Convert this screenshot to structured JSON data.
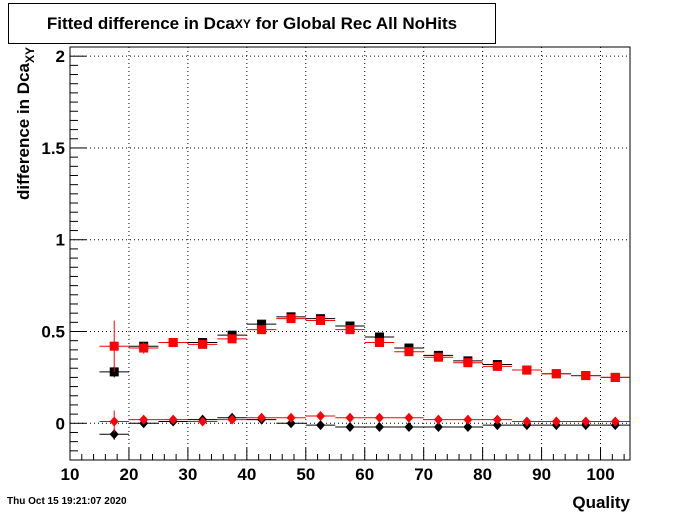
{
  "chart_data": {
    "type": "scatter",
    "title_main": "Fitted difference in Dca",
    "title_sub": "XY",
    "title_rest": " for Global Rec All NoHits",
    "ylabel_main": "difference in Dca",
    "ylabel_sub": "XY",
    "xlabel": "Quality",
    "xlim": [
      10,
      105
    ],
    "ylim": [
      -0.2,
      2.05
    ],
    "xticks": [
      10,
      20,
      30,
      40,
      50,
      60,
      70,
      80,
      90,
      100
    ],
    "yticks": [
      0,
      0.5,
      1,
      1.5,
      2
    ],
    "ytick_labels": [
      "0",
      "0.5",
      "1",
      "1.5",
      "2"
    ],
    "grid": true,
    "series": [
      {
        "marker": "square",
        "color": "#000000",
        "x": [
          17.5,
          22.5,
          27.5,
          32.5,
          37.5,
          42.5,
          47.5,
          52.5,
          57.5,
          62.5,
          67.5,
          72.5,
          77.5,
          82.5,
          87.5,
          92.5,
          97.5,
          102.5
        ],
        "y": [
          0.28,
          0.42,
          0.44,
          0.44,
          0.48,
          0.54,
          0.58,
          0.57,
          0.53,
          0.47,
          0.41,
          0.37,
          0.34,
          0.32,
          0.29,
          0.27,
          0.26,
          0.25
        ],
        "yerr": [
          0.03,
          0.01,
          0.01,
          0.01,
          0.01,
          0.01,
          0.01,
          0.01,
          0.01,
          0.01,
          0.01,
          0.01,
          0.01,
          0.01,
          0.01,
          0.01,
          0.01,
          0.01
        ]
      },
      {
        "marker": "square",
        "color": "#ff0000",
        "x": [
          17.5,
          22.5,
          27.5,
          32.5,
          37.5,
          42.5,
          47.5,
          52.5,
          57.5,
          62.5,
          67.5,
          72.5,
          77.5,
          82.5,
          87.5,
          92.5,
          97.5,
          102.5
        ],
        "y": [
          0.42,
          0.41,
          0.44,
          0.43,
          0.46,
          0.51,
          0.57,
          0.56,
          0.51,
          0.44,
          0.39,
          0.36,
          0.33,
          0.31,
          0.29,
          0.27,
          0.26,
          0.25
        ],
        "yerr": [
          0.14,
          0.03,
          0.02,
          0.02,
          0.02,
          0.01,
          0.01,
          0.01,
          0.01,
          0.01,
          0.01,
          0.01,
          0.01,
          0.01,
          0.01,
          0.01,
          0.01,
          0.01
        ]
      },
      {
        "marker": "diamond",
        "color": "#000000",
        "x": [
          17.5,
          22.5,
          27.5,
          32.5,
          37.5,
          42.5,
          47.5,
          52.5,
          57.5,
          62.5,
          67.5,
          72.5,
          77.5,
          82.5,
          87.5,
          92.5,
          97.5,
          102.5
        ],
        "y": [
          -0.06,
          0.0,
          0.01,
          0.02,
          0.03,
          0.02,
          0.0,
          -0.01,
          -0.02,
          -0.02,
          -0.02,
          -0.02,
          -0.02,
          -0.01,
          -0.01,
          -0.01,
          -0.01,
          -0.01
        ],
        "yerr": [
          0.03,
          0.01,
          0.01,
          0.01,
          0.01,
          0.01,
          0.01,
          0.01,
          0.01,
          0.01,
          0.01,
          0.01,
          0.01,
          0.01,
          0.01,
          0.01,
          0.01,
          0.01
        ]
      },
      {
        "marker": "diamond",
        "color": "#ff0000",
        "x": [
          17.5,
          22.5,
          27.5,
          32.5,
          37.5,
          42.5,
          47.5,
          52.5,
          57.5,
          62.5,
          67.5,
          72.5,
          77.5,
          82.5,
          87.5,
          92.5,
          97.5,
          102.5
        ],
        "y": [
          0.01,
          0.02,
          0.02,
          0.01,
          0.02,
          0.03,
          0.03,
          0.04,
          0.03,
          0.03,
          0.03,
          0.02,
          0.02,
          0.02,
          0.01,
          0.01,
          0.01,
          0.01
        ],
        "yerr": [
          0.06,
          0.02,
          0.01,
          0.01,
          0.01,
          0.01,
          0.01,
          0.01,
          0.01,
          0.01,
          0.01,
          0.01,
          0.01,
          0.01,
          0.01,
          0.01,
          0.01,
          0.01
        ]
      }
    ]
  },
  "footer": {
    "timestamp": "Thu Oct 15 19:21:07 2020"
  }
}
